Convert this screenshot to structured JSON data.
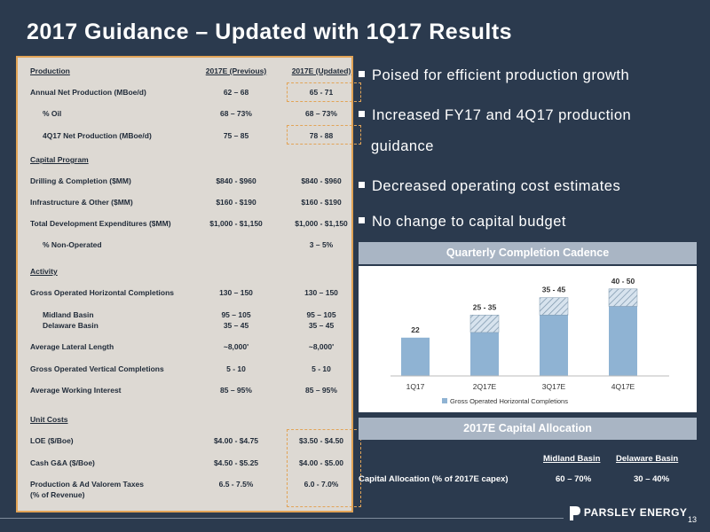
{
  "title": "2017 Guidance – Updated with 1Q17 Results",
  "table": {
    "headers": [
      "Production",
      "2017E (Previous)",
      "2017E (Updated)"
    ],
    "rows": [
      {
        "label": "Annual Net Production (MBoe/d)",
        "prev": "62 – 68",
        "upd": "65 - 71"
      },
      {
        "label": "% Oil",
        "prev": "68 – 73%",
        "upd": "68 – 73%"
      },
      {
        "label": "4Q17 Net Production (MBoe/d)",
        "prev": "75 – 85",
        "upd": "78 - 88"
      },
      {
        "label": "Capital Program",
        "prev": "",
        "upd": ""
      },
      {
        "label": "Drilling & Completion ($MM)",
        "prev": "$840 - $960",
        "upd": "$840 - $960"
      },
      {
        "label": "Infrastructure & Other ($MM)",
        "prev": "$160 - $190",
        "upd": "$160 - $190"
      },
      {
        "label": "Total Development Expenditures ($MM)",
        "prev": "$1,000 - $1,150",
        "upd": "$1,000 - $1,150"
      },
      {
        "label": "% Non-Operated",
        "prev": "",
        "upd": "3 – 5%"
      },
      {
        "label": "Activity",
        "prev": "",
        "upd": ""
      },
      {
        "label": "Gross Operated Horizontal Completions",
        "prev": "130 – 150",
        "upd": "130 – 150"
      },
      {
        "label": "Midland Basin",
        "prev": "95 – 105",
        "upd": "95 – 105"
      },
      {
        "label": "Delaware Basin",
        "prev": "35 – 45",
        "upd": "35 – 45"
      },
      {
        "label": "Average Lateral Length",
        "prev": "~8,000'",
        "upd": "~8,000'"
      },
      {
        "label": "Gross Operated Vertical Completions",
        "prev": "5 - 10",
        "upd": "5 - 10"
      },
      {
        "label": "Average Working Interest",
        "prev": "85 – 95%",
        "upd": "85 – 95%"
      },
      {
        "label": "Unit Costs",
        "prev": "",
        "upd": ""
      },
      {
        "label": "LOE ($/Boe)",
        "prev": "$4.00 - $4.75",
        "upd": "$3.50 - $4.50"
      },
      {
        "label": "Cash G&A ($/Boe)",
        "prev": "$4.50 - $5.25",
        "upd": "$4.00 - $5.00"
      },
      {
        "label": "Production & Ad Valorem Taxes",
        "prev": "6.5 - 7.5%",
        "upd": "6.0 - 7.0%"
      },
      {
        "label": "(% of Revenue)",
        "prev": "",
        "upd": ""
      }
    ]
  },
  "bullets": [
    "Poised for efficient production growth",
    "Increased FY17 and 4Q17 production",
    "guidance",
    "Decreased operating cost estimates",
    "No change to capital budget"
  ],
  "chart_title": "Quarterly Completion Cadence",
  "chart_data": {
    "type": "bar",
    "categories": [
      "1Q17",
      "2Q17E",
      "3Q17E",
      "4Q17E"
    ],
    "low": [
      22,
      25,
      35,
      40
    ],
    "high": [
      22,
      35,
      45,
      50
    ],
    "labels": [
      "22",
      "25 - 35",
      "35 - 45",
      "40 - 50"
    ],
    "legend": "Gross Operated Horizontal Completions",
    "ylim": [
      0,
      55
    ]
  },
  "alloc": {
    "title": "2017E Capital Allocation",
    "col1": "Midland Basin",
    "col2": "Delaware Basin",
    "row_label": "Capital Allocation (% of 2017E capex)",
    "v1": "60 – 70%",
    "v2": "30 – 40%"
  },
  "logo_text": "PARSLEY ENERGY",
  "page_number": "13",
  "colors": {
    "bg": "#2b3a4e",
    "panel": "#ddd9d3",
    "accent": "#e2a457",
    "bar": "#8fb3d3",
    "band": "#a9b5c4"
  }
}
